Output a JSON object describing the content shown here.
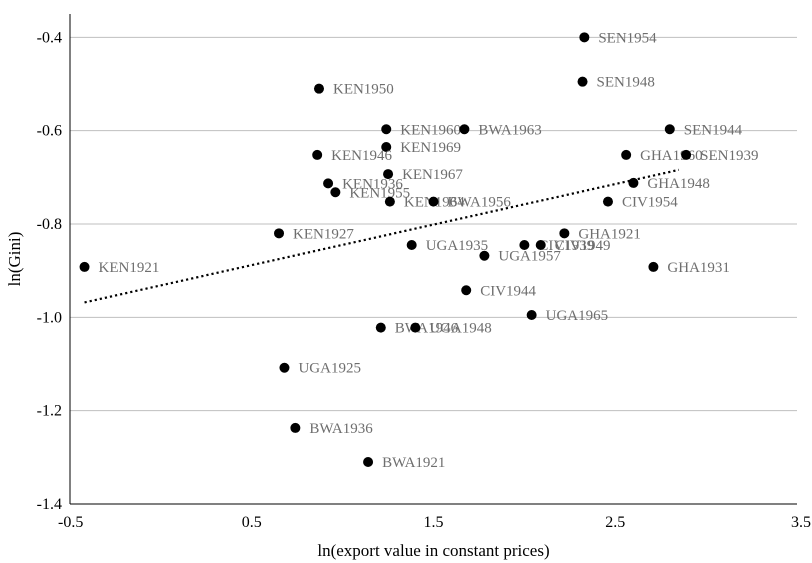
{
  "chart_data": {
    "type": "scatter",
    "xlabel": "ln(export value in constant prices)",
    "ylabel": "ln(Gini)",
    "xlim": [
      -0.5,
      3.5
    ],
    "ylim": [
      -1.4,
      -0.35
    ],
    "x_ticks": [
      -0.5,
      0.5,
      1.5,
      2.5,
      3.5
    ],
    "x_tick_labels": [
      "-0.5",
      "0.5",
      "1.5",
      "2.5",
      "3.5"
    ],
    "y_ticks": [
      -1.4,
      -1.2,
      -1.0,
      -0.8,
      -0.6,
      -0.4
    ],
    "y_tick_labels": [
      "-1.4",
      "-1.2",
      "-1.0",
      "-0.8",
      "-0.6",
      "-0.4"
    ],
    "grid": true,
    "legend": "none",
    "trendline": {
      "style": "dotted",
      "x": [
        -0.42,
        2.85
      ],
      "y": [
        -0.968,
        -0.684
      ]
    },
    "points": [
      {
        "label": "SEN1954",
        "x": 2.33,
        "y": -0.4
      },
      {
        "label": "SEN1948",
        "x": 2.32,
        "y": -0.495
      },
      {
        "label": "KEN1950",
        "x": 0.87,
        "y": -0.51
      },
      {
        "label": "KEN1960",
        "x": 1.24,
        "y": -0.597
      },
      {
        "label": "BWA1963",
        "x": 1.67,
        "y": -0.597
      },
      {
        "label": "SEN1944",
        "x": 2.8,
        "y": -0.597
      },
      {
        "label": "KEN1969",
        "x": 1.24,
        "y": -0.635
      },
      {
        "label": "KEN1946",
        "x": 0.86,
        "y": -0.652
      },
      {
        "label": "GHA1960",
        "x": 2.56,
        "y": -0.652
      },
      {
        "label": "SEN1939",
        "x": 2.89,
        "y": -0.652
      },
      {
        "label": "KEN1967",
        "x": 1.25,
        "y": -0.693
      },
      {
        "label": "GHA1948",
        "x": 2.6,
        "y": -0.712
      },
      {
        "label": "KEN1936",
        "x": 0.92,
        "y": -0.713
      },
      {
        "label": "KEN1955",
        "x": 0.96,
        "y": -0.732
      },
      {
        "label": "KEN1964",
        "x": 1.26,
        "y": -0.752
      },
      {
        "label": "BWA1956",
        "x": 1.5,
        "y": -0.752
      },
      {
        "label": "CIV1954",
        "x": 2.46,
        "y": -0.752
      },
      {
        "label": "KEN1927",
        "x": 0.65,
        "y": -0.82
      },
      {
        "label": "GHA1921",
        "x": 2.22,
        "y": -0.82
      },
      {
        "label": "UGA1935",
        "x": 1.38,
        "y": -0.845
      },
      {
        "label": "CIV1939",
        "x": 2.0,
        "y": -0.845
      },
      {
        "label": "CIV1949",
        "x": 2.09,
        "y": -0.845
      },
      {
        "label": "UGA1957",
        "x": 1.78,
        "y": -0.868
      },
      {
        "label": "KEN1921",
        "x": -0.42,
        "y": -0.892
      },
      {
        "label": "GHA1931",
        "x": 2.71,
        "y": -0.892
      },
      {
        "label": "CIV1944",
        "x": 1.68,
        "y": -0.942
      },
      {
        "label": "UGA1965",
        "x": 2.04,
        "y": -0.995
      },
      {
        "label": "BWA1946",
        "x": 1.21,
        "y": -1.022
      },
      {
        "label": "UGA1948",
        "x": 1.4,
        "y": -1.022
      },
      {
        "label": "UGA1925",
        "x": 0.68,
        "y": -1.108
      },
      {
        "label": "BWA1936",
        "x": 0.74,
        "y": -1.237
      },
      {
        "label": "BWA1921",
        "x": 1.14,
        "y": -1.31
      }
    ]
  }
}
